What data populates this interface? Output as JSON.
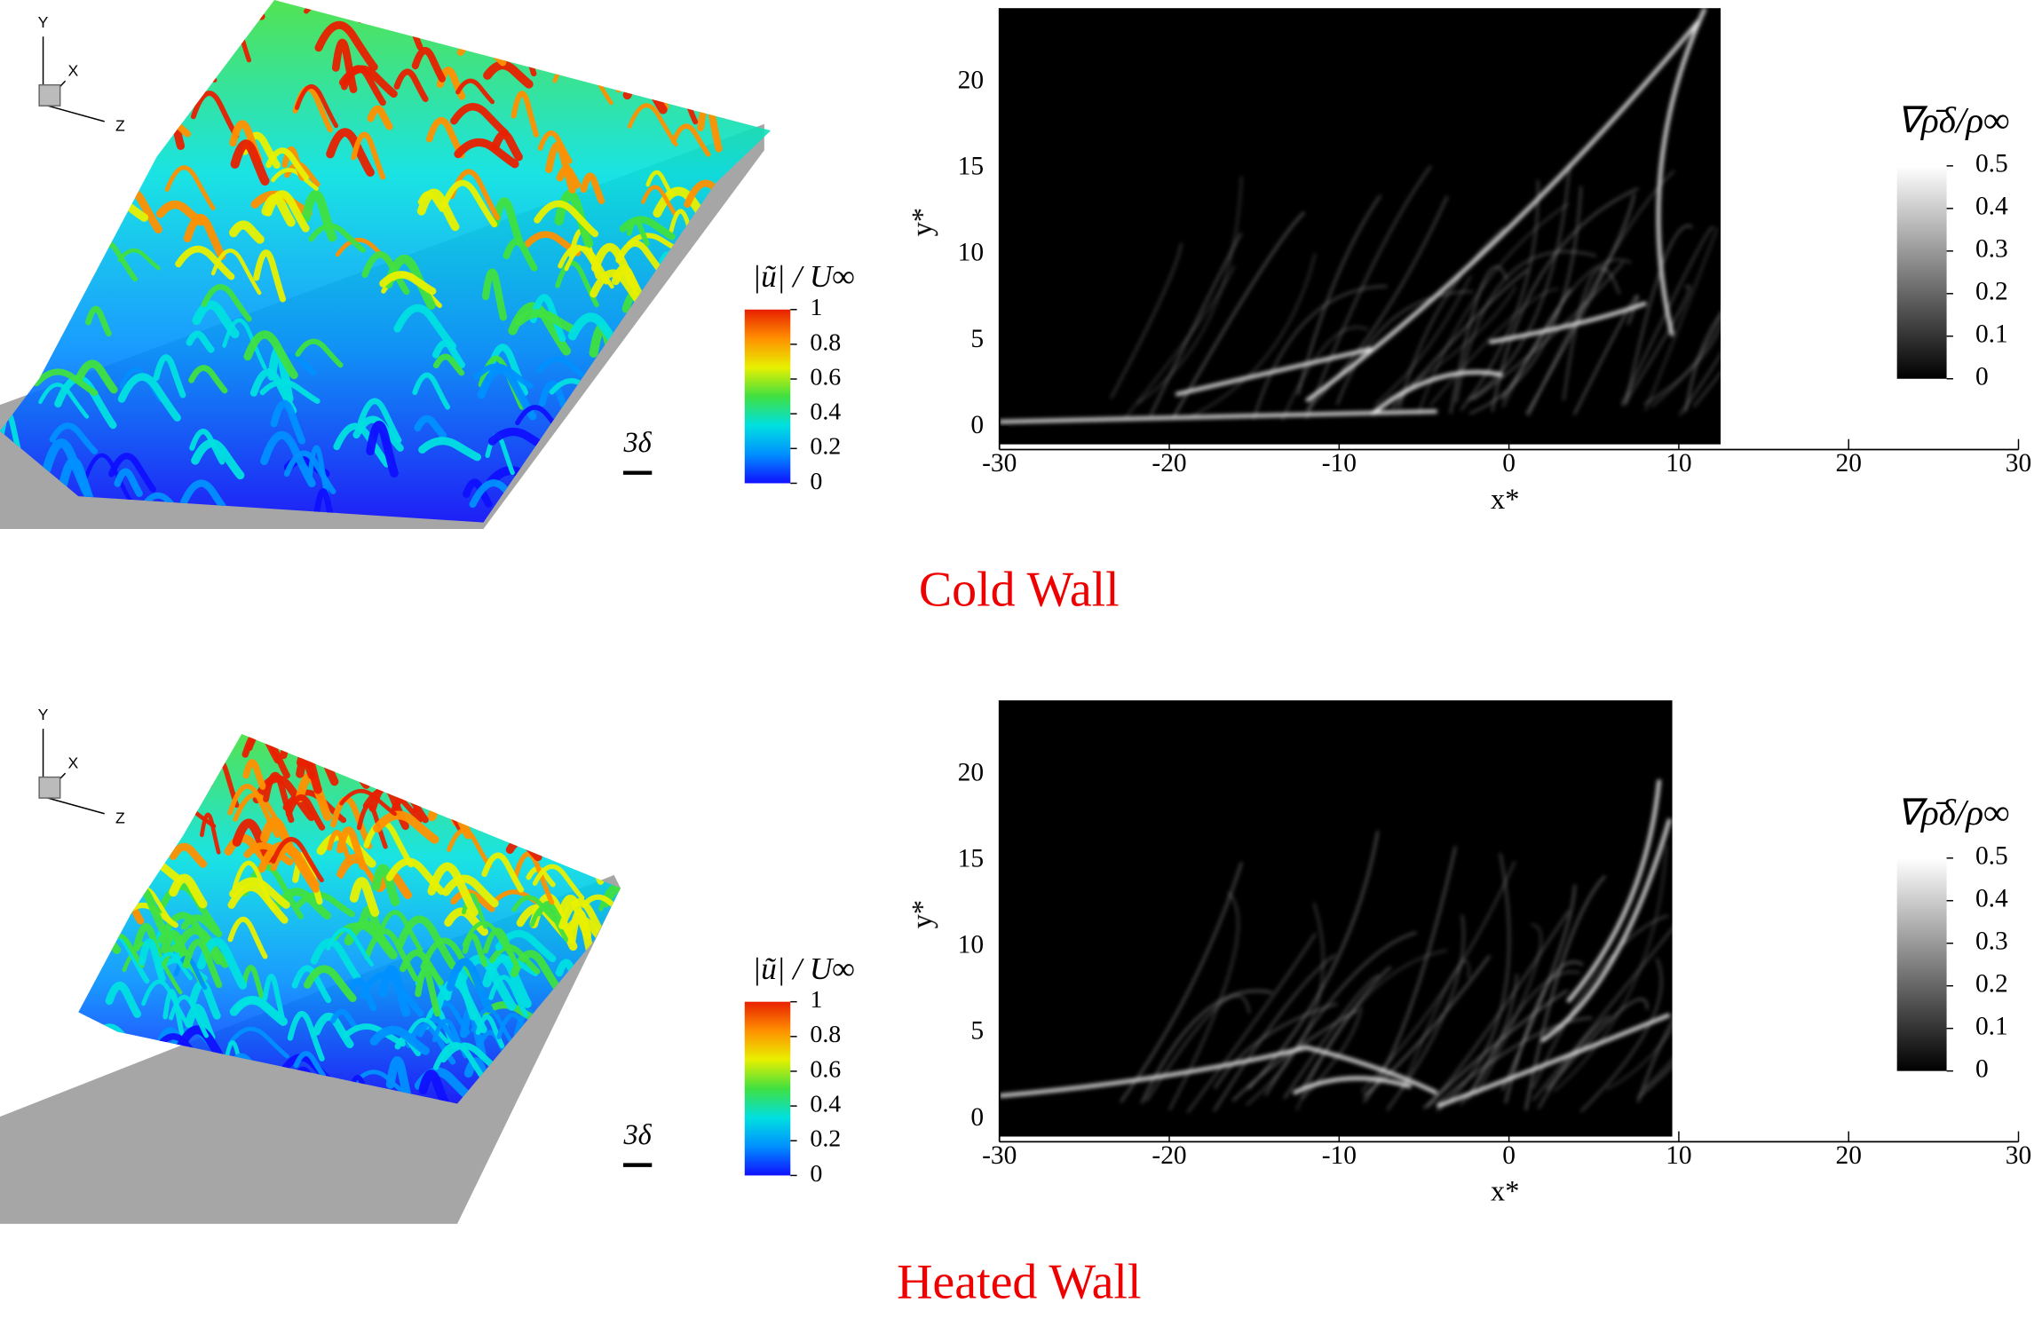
{
  "panels": [
    {
      "caption": "Cold Wall",
      "isosurface": {
        "triad": [
          "Y",
          "X",
          "Z"
        ],
        "scale_label": "3δ",
        "colorbar": {
          "title": "|ũ| / U∞",
          "ticks": [
            0,
            0.2,
            0.4,
            0.6,
            0.8,
            1
          ],
          "colors": [
            "#1010ff",
            "#0090ff",
            "#00e0e0",
            "#40e040",
            "#e8f000",
            "#ff9000",
            "#e82000"
          ]
        }
      }
    },
    {
      "caption": "Heated Wall",
      "isosurface": {
        "triad": [
          "Y",
          "X",
          "Z"
        ],
        "scale_label": "3δ",
        "colorbar": {
          "title": "|ũ| / U∞",
          "ticks": [
            0,
            0.2,
            0.4,
            0.6,
            0.8,
            1
          ],
          "colors": [
            "#1010ff",
            "#0090ff",
            "#00e0e0",
            "#40e040",
            "#e8f000",
            "#ff9000",
            "#e82000"
          ]
        }
      }
    }
  ],
  "chart_data": [
    {
      "type": "heatmap",
      "xlabel": "x*",
      "ylabel": "y*",
      "xlim": [
        -30,
        30
      ],
      "ylim": [
        -1,
        24.3
      ],
      "xticks": [
        -30,
        -20,
        -10,
        0,
        10,
        20,
        30
      ],
      "yticks": [
        0,
        5,
        10,
        15,
        20
      ],
      "colorbar": {
        "title": "∇ρ̄δ/ρ∞",
        "ticks": [
          0,
          0.1,
          0.2,
          0.3,
          0.4,
          0.5
        ],
        "colors": [
          "#000000",
          "#ffffff"
        ]
      }
    },
    {
      "type": "heatmap",
      "xlabel": "x*",
      "ylabel": "y*",
      "xlim": [
        -30,
        30
      ],
      "ylim": [
        -1,
        24.3
      ],
      "xticks": [
        -30,
        -20,
        -10,
        0,
        10,
        20,
        30
      ],
      "yticks": [
        0,
        5,
        10,
        15,
        20
      ],
      "colorbar": {
        "title": "∇ρ̄δ/ρ∞",
        "ticks": [
          0,
          0.1,
          0.2,
          0.3,
          0.4,
          0.5
        ],
        "colors": [
          "#000000",
          "#ffffff"
        ]
      }
    }
  ]
}
